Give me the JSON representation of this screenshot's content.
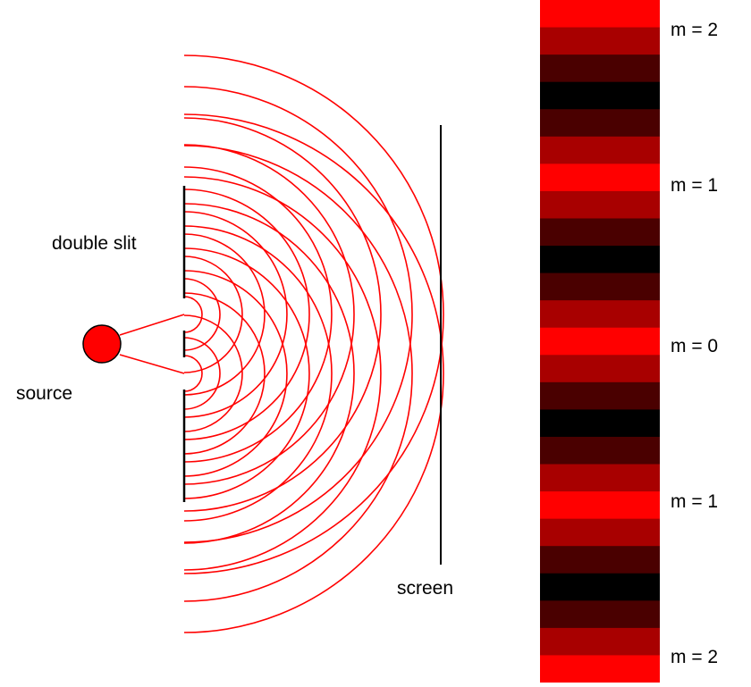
{
  "labels": {
    "double_slit": "double slit",
    "source": "source",
    "screen": "screen"
  },
  "orders": [
    {
      "label": "m = 2"
    },
    {
      "label": "m = 1"
    },
    {
      "label": "m = 0"
    },
    {
      "label": "m = 1"
    },
    {
      "label": "m = 2"
    }
  ],
  "colors": {
    "wave": "#ff0000",
    "source_fill": "#ff0000",
    "barrier": "#000000",
    "bright": "#ff0000",
    "mid": "#a80000",
    "dim": "#4a0000",
    "dark": "#000000"
  },
  "fringe_pattern": [
    "bright",
    "mid",
    "dim",
    "dark",
    "dim",
    "mid",
    "bright",
    "mid",
    "dim",
    "dark",
    "dim",
    "mid",
    "bright",
    "mid",
    "dim",
    "dark",
    "dim",
    "mid",
    "bright",
    "mid",
    "dim",
    "dark",
    "dim",
    "mid",
    "bright"
  ]
}
